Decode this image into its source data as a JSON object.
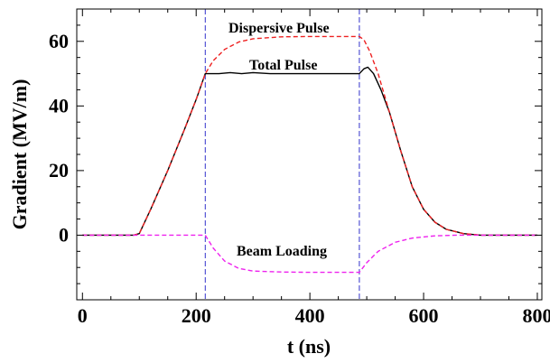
{
  "chart_data": {
    "type": "line",
    "xlabel": "t (ns)",
    "ylabel": "Gradient (MV/m)",
    "xlim": [
      -10,
      808
    ],
    "ylim": [
      -20,
      70
    ],
    "xticks": [
      0,
      200,
      400,
      600,
      800
    ],
    "yticks": [
      0,
      20,
      40,
      60
    ],
    "grid": false,
    "annotations": [
      "Dispersive Pulse",
      "Total Pulse",
      "Beam Loading"
    ],
    "vlines": [
      216,
      487
    ],
    "series": [
      {
        "name": "Total Pulse",
        "color": "#000000",
        "dash": "solid",
        "points": [
          [
            0,
            0
          ],
          [
            90,
            0
          ],
          [
            100,
            0.5
          ],
          [
            120,
            8
          ],
          [
            150,
            20
          ],
          [
            180,
            33
          ],
          [
            200,
            42
          ],
          [
            216,
            50
          ],
          [
            240,
            50
          ],
          [
            260,
            50.3
          ],
          [
            280,
            50
          ],
          [
            300,
            50.3
          ],
          [
            330,
            50
          ],
          [
            360,
            50
          ],
          [
            400,
            50
          ],
          [
            450,
            50
          ],
          [
            480,
            50
          ],
          [
            487,
            50
          ],
          [
            495,
            51.5
          ],
          [
            502,
            52
          ],
          [
            512,
            50
          ],
          [
            525,
            45
          ],
          [
            540,
            38
          ],
          [
            560,
            26
          ],
          [
            580,
            15
          ],
          [
            600,
            8
          ],
          [
            620,
            4
          ],
          [
            640,
            1.8
          ],
          [
            670,
            0.5
          ],
          [
            700,
            0
          ],
          [
            800,
            0
          ]
        ]
      },
      {
        "name": "Dispersive Pulse",
        "color": "#ee2222",
        "dash": "dashed",
        "points": [
          [
            0,
            0
          ],
          [
            90,
            0
          ],
          [
            100,
            0.5
          ],
          [
            120,
            8
          ],
          [
            150,
            20
          ],
          [
            180,
            33
          ],
          [
            200,
            42
          ],
          [
            216,
            50
          ],
          [
            230,
            54
          ],
          [
            250,
            57.5
          ],
          [
            275,
            59.8
          ],
          [
            300,
            60.8
          ],
          [
            350,
            61.4
          ],
          [
            400,
            61.5
          ],
          [
            487,
            61.5
          ],
          [
            495,
            60.5
          ],
          [
            505,
            57
          ],
          [
            520,
            50
          ],
          [
            540,
            38
          ],
          [
            560,
            26
          ],
          [
            580,
            15
          ],
          [
            600,
            8
          ],
          [
            620,
            4
          ],
          [
            640,
            1.8
          ],
          [
            670,
            0.5
          ],
          [
            700,
            0
          ],
          [
            800,
            0
          ]
        ]
      },
      {
        "name": "Beam Loading",
        "color": "#ee22ee",
        "dash": "dashed",
        "points": [
          [
            0,
            0
          ],
          [
            216,
            0
          ],
          [
            230,
            -4
          ],
          [
            250,
            -8
          ],
          [
            275,
            -10.3
          ],
          [
            300,
            -11.1
          ],
          [
            350,
            -11.4
          ],
          [
            400,
            -11.5
          ],
          [
            487,
            -11.5
          ],
          [
            500,
            -8.5
          ],
          [
            520,
            -5
          ],
          [
            550,
            -2.2
          ],
          [
            580,
            -0.9
          ],
          [
            620,
            -0.2
          ],
          [
            660,
            0
          ],
          [
            800,
            0
          ]
        ]
      }
    ]
  }
}
